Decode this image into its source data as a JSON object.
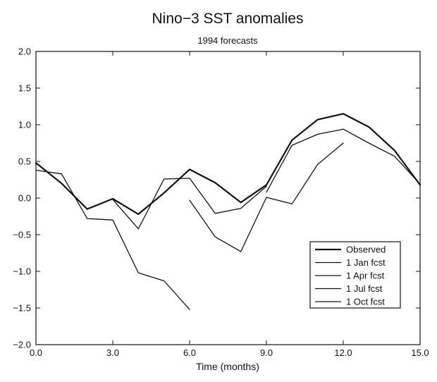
{
  "chart_data": {
    "type": "line",
    "title": "Nino−3 SST anomalies",
    "subtitle": "1994 forecasts",
    "xlabel": "Time (months)",
    "ylabel": "",
    "xlim": [
      0,
      15
    ],
    "ylim": [
      -2,
      2
    ],
    "x_ticks": [
      "0.0",
      "3.0",
      "6.0",
      "9.0",
      "12.0",
      "15.0"
    ],
    "y_ticks": [
      "2.0",
      "1.5",
      "1.0",
      "0.5",
      "0.0",
      "−0.5",
      "−1.0",
      "−1.5",
      "−2.0"
    ],
    "x_tick_values": [
      0,
      3,
      6,
      9,
      12,
      15
    ],
    "y_tick_values": [
      2,
      1.5,
      1,
      0.5,
      0,
      -0.5,
      -1,
      -1.5,
      -2
    ],
    "grid": false,
    "legend_position": "bottom-right",
    "series": [
      {
        "name": "Observed",
        "x": [
          0,
          1,
          2,
          3,
          4,
          5,
          6,
          7,
          8,
          9,
          10,
          11,
          12,
          13,
          14,
          15
        ],
        "y": [
          0.48,
          0.2,
          -0.15,
          -0.01,
          -0.22,
          0.07,
          0.39,
          0.21,
          -0.06,
          0.18,
          0.79,
          1.07,
          1.15,
          0.97,
          0.65,
          0.18
        ]
      },
      {
        "name": "1 Jan fcst",
        "x": [
          0,
          1,
          2,
          3,
          4,
          5,
          6
        ],
        "y": [
          0.38,
          0.33,
          -0.28,
          -0.3,
          -1.02,
          -1.13,
          -1.52
        ]
      },
      {
        "name": "1 Apr fcst",
        "x": [
          3,
          4,
          5,
          6,
          7,
          8,
          9
        ],
        "y": [
          -0.02,
          -0.42,
          0.26,
          0.27,
          -0.21,
          -0.14,
          0.16
        ]
      },
      {
        "name": "1 Jul fcst",
        "x": [
          6,
          7,
          8,
          9,
          10,
          11,
          12
        ],
        "y": [
          -0.03,
          -0.53,
          -0.73,
          0.01,
          -0.08,
          0.46,
          0.75
        ]
      },
      {
        "name": "1 Oct fcst",
        "x": [
          9,
          10,
          11,
          12,
          13,
          14,
          15
        ],
        "y": [
          0.08,
          0.72,
          0.87,
          0.94,
          0.75,
          0.57,
          0.19
        ]
      }
    ]
  },
  "styles": {
    "line_color": "#111111",
    "background": "#ffffff"
  }
}
